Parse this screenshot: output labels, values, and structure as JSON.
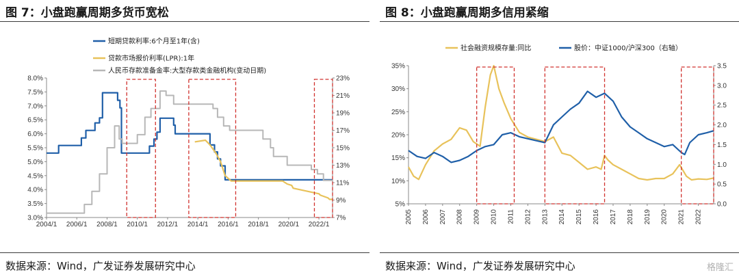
{
  "left": {
    "title": "图 7：小盘跑赢周期多货币宽松",
    "source": "数据来源：Wind，广发证券发展研究中心"
  },
  "right": {
    "title": "图 8：小盘跑赢周期多信用紧缩",
    "source": "数据来源：Wind，广发证券发展研究中心"
  },
  "watermark": "格隆汇",
  "colors": {
    "blue": "#1f5fa8",
    "gold": "#e8c25a",
    "gray": "#b7b7b7",
    "red": "#d0312d"
  },
  "chart_data": [
    {
      "type": "line",
      "x_ticks": [
        "2004/1",
        "2006/1",
        "2008/1",
        "2010/1",
        "2012/1",
        "2014/1",
        "2016/1",
        "2018/1",
        "2020/1",
        "2022/1"
      ],
      "y_left_ticks": [
        "3.0%",
        "3.5%",
        "4.0%",
        "4.5%",
        "5.0%",
        "5.5%",
        "6.0%",
        "6.5%",
        "7.0%",
        "7.5%",
        "8.0%"
      ],
      "y_right_ticks": [
        "7%",
        "9%",
        "11%",
        "13%",
        "15%",
        "17%",
        "19%",
        "21%",
        "23%"
      ],
      "ylim_left": [
        3.0,
        8.0
      ],
      "ylim_right": [
        7,
        23
      ],
      "xlim": [
        2004.0,
        2022.9
      ],
      "series": [
        {
          "name": "短期贷款利率:6个月至1年(含)",
          "axis": "left",
          "color": "blue",
          "x": [
            2004.0,
            2004.8,
            2004.8,
            2006.3,
            2006.3,
            2006.6,
            2006.6,
            2007.2,
            2007.2,
            2007.5,
            2007.5,
            2007.7,
            2007.7,
            2008.7,
            2008.7,
            2008.85,
            2008.85,
            2008.95,
            2008.95,
            2010.8,
            2010.8,
            2011.1,
            2011.1,
            2011.3,
            2011.3,
            2011.5,
            2011.5,
            2012.4,
            2012.4,
            2012.5,
            2012.5,
            2014.8,
            2014.8,
            2015.1,
            2015.1,
            2015.3,
            2015.3,
            2015.5,
            2015.5,
            2015.8,
            2015.8,
            2022.9
          ],
          "y": [
            5.31,
            5.31,
            5.58,
            5.58,
            5.85,
            5.85,
            6.12,
            6.12,
            6.39,
            6.39,
            6.57,
            6.57,
            7.47,
            7.47,
            7.2,
            7.2,
            6.93,
            6.93,
            5.31,
            5.31,
            5.56,
            5.56,
            5.81,
            5.81,
            6.06,
            6.06,
            6.56,
            6.56,
            6.31,
            6.31,
            6.0,
            6.0,
            5.6,
            5.6,
            5.35,
            5.35,
            5.1,
            5.1,
            4.85,
            4.85,
            4.35,
            4.35
          ]
        },
        {
          "name": "贷款市场报价利率(LPR):1年",
          "axis": "left",
          "color": "gold",
          "x": [
            2013.8,
            2014.5,
            2014.8,
            2015.2,
            2015.5,
            2015.8,
            2016.2,
            2019.6,
            2019.9,
            2020.2,
            2020.3,
            2022.0,
            2022.1,
            2022.6,
            2022.7,
            2022.9
          ],
          "y": [
            5.71,
            5.77,
            5.6,
            5.3,
            5.0,
            4.5,
            4.31,
            4.31,
            4.2,
            4.15,
            4.05,
            3.85,
            3.8,
            3.7,
            3.65,
            3.65
          ]
        },
        {
          "name": "人民币存款准备金率:大型存款类金融机构(变动日期)",
          "axis": "right",
          "color": "gray",
          "x": [
            2004.0,
            2006.5,
            2006.5,
            2007.0,
            2007.0,
            2007.5,
            2007.5,
            2008.0,
            2008.0,
            2008.5,
            2008.5,
            2008.8,
            2008.8,
            2009.0,
            2009.0,
            2010.0,
            2010.0,
            2010.5,
            2010.5,
            2010.9,
            2010.9,
            2011.5,
            2011.5,
            2011.9,
            2011.9,
            2012.4,
            2012.4,
            2015.0,
            2015.0,
            2015.3,
            2015.3,
            2015.7,
            2015.7,
            2016.1,
            2016.1,
            2018.3,
            2018.3,
            2018.8,
            2018.8,
            2019.0,
            2019.0,
            2019.9,
            2019.9,
            2021.5,
            2021.5,
            2021.9,
            2021.9,
            2022.3,
            2022.3,
            2022.9
          ],
          "y": [
            7.5,
            7.5,
            8.5,
            8.5,
            10.0,
            10.0,
            12.0,
            12.0,
            15.0,
            15.0,
            17.5,
            17.5,
            16.0,
            16.0,
            15.5,
            15.5,
            16.5,
            16.5,
            18.5,
            18.5,
            19.5,
            19.5,
            21.5,
            21.5,
            21.0,
            21.0,
            20.0,
            20.0,
            19.5,
            19.5,
            18.5,
            18.5,
            17.5,
            17.5,
            17.0,
            17.0,
            16.0,
            16.0,
            15.0,
            15.0,
            14.0,
            14.0,
            13.0,
            13.0,
            12.5,
            12.5,
            12.0,
            12.0,
            11.25,
            11.25
          ]
        }
      ],
      "highlight_periods": [
        [
          2009.3,
          2011.2
        ],
        [
          2013.4,
          2016.5
        ],
        [
          2021.7,
          2022.9
        ]
      ]
    },
    {
      "type": "line",
      "x_ticks": [
        "2005",
        "2006",
        "2007",
        "2008",
        "2009",
        "2010",
        "2011",
        "2012",
        "2013",
        "2014",
        "2015",
        "2016",
        "2017",
        "2018",
        "2019",
        "2020",
        "2021",
        "2022"
      ],
      "y_left_ticks": [
        "5%",
        "10%",
        "15%",
        "20%",
        "25%",
        "30%",
        "35%"
      ],
      "y_right_ticks": [
        "0.0",
        "0.5",
        "1.0",
        "1.5",
        "2.0",
        "2.5",
        "3.0",
        "3.5"
      ],
      "ylim_left": [
        5,
        35
      ],
      "ylim_right": [
        0.0,
        3.5
      ],
      "xlim": [
        2005.0,
        2022.9
      ],
      "series": [
        {
          "name": "社会融资规模存量:同比",
          "axis": "left",
          "color": "gold",
          "x": [
            2005.0,
            2005.3,
            2005.6,
            2006.0,
            2006.5,
            2007.0,
            2007.5,
            2008.0,
            2008.4,
            2008.8,
            2009.2,
            2009.5,
            2009.8,
            2010.0,
            2010.3,
            2010.6,
            2011.0,
            2011.5,
            2012.0,
            2012.5,
            2013.0,
            2013.5,
            2014.0,
            2014.5,
            2015.0,
            2015.5,
            2016.0,
            2016.3,
            2016.5,
            2016.7,
            2017.0,
            2017.5,
            2018.0,
            2018.5,
            2019.0,
            2019.5,
            2020.0,
            2020.5,
            2020.9,
            2021.3,
            2021.6,
            2022.0,
            2022.5,
            2022.9
          ],
          "y": [
            13.0,
            11.0,
            10.3,
            13.5,
            16.5,
            18.0,
            19.0,
            21.5,
            21.0,
            18.5,
            17.5,
            26.0,
            33.0,
            35.0,
            30.0,
            27.0,
            23.5,
            20.5,
            19.5,
            19.0,
            18.5,
            19.5,
            16.0,
            15.5,
            14.0,
            12.5,
            13.0,
            12.5,
            15.5,
            14.5,
            13.5,
            12.5,
            11.5,
            10.5,
            10.2,
            10.5,
            10.5,
            11.5,
            13.5,
            11.0,
            10.2,
            10.4,
            10.3,
            10.6
          ]
        },
        {
          "name": "股价：中证1000/沪深300（右轴）",
          "axis": "right",
          "color": "blue",
          "x": [
            2005.0,
            2005.5,
            2006.0,
            2006.5,
            2007.0,
            2007.5,
            2008.0,
            2008.5,
            2009.0,
            2009.5,
            2010.0,
            2010.5,
            2011.0,
            2011.5,
            2012.0,
            2012.5,
            2013.0,
            2013.5,
            2014.0,
            2014.5,
            2015.0,
            2015.5,
            2016.0,
            2016.5,
            2017.0,
            2017.5,
            2018.0,
            2018.5,
            2019.0,
            2019.5,
            2020.0,
            2020.5,
            2021.0,
            2021.2,
            2021.5,
            2022.0,
            2022.5,
            2022.9
          ],
          "y": [
            1.35,
            1.2,
            1.15,
            1.3,
            1.2,
            1.05,
            1.1,
            1.2,
            1.35,
            1.45,
            1.5,
            1.75,
            1.8,
            1.7,
            1.65,
            1.6,
            1.55,
            2.0,
            2.2,
            2.4,
            2.55,
            2.85,
            2.7,
            2.8,
            2.6,
            2.2,
            1.95,
            1.8,
            1.65,
            1.55,
            1.45,
            1.5,
            1.3,
            1.25,
            1.55,
            1.75,
            1.8,
            1.85
          ]
        }
      ],
      "highlight_periods": [
        [
          2009.0,
          2011.2
        ],
        [
          2013.0,
          2016.5
        ],
        [
          2021.0,
          2022.9
        ]
      ]
    }
  ]
}
